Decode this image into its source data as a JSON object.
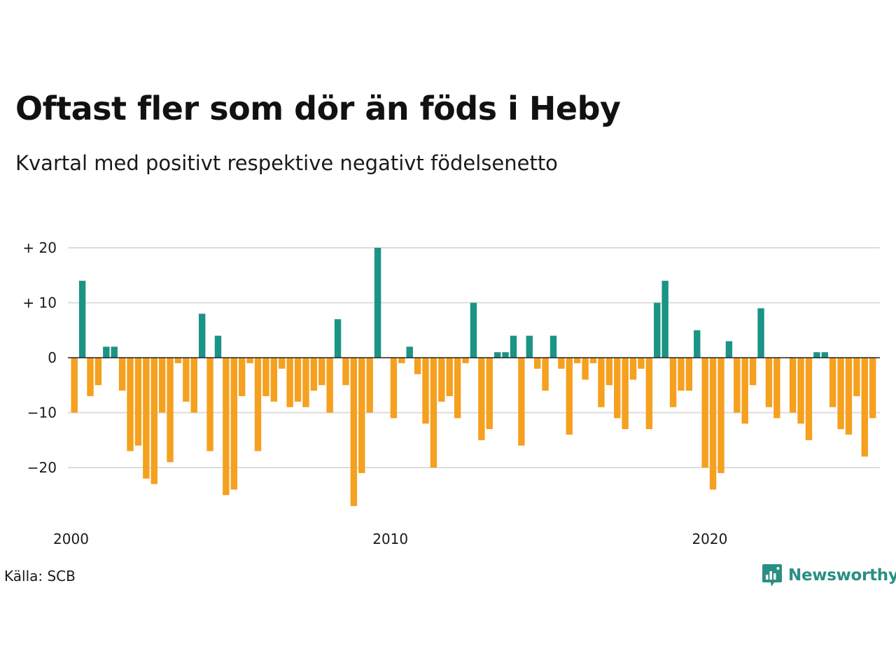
{
  "title": "Oftast fler som dör än föds i Heby",
  "subtitle": "Kvartal med positivt respektive negativt födelsenetto",
  "source": "Källa: SCB",
  "brand": {
    "name": "Newsworthy",
    "icon": "newsworthy-logo-icon"
  },
  "colors": {
    "positive": "#1a9484",
    "negative": "#f5a01f",
    "grid": "#dddddd",
    "axis": "#222222",
    "brand": "#2a8f83"
  },
  "chart_data": {
    "type": "bar",
    "title": "Oftast fler som dör än föds i Heby",
    "subtitle": "Kvartal med positivt respektive negativt födelsenetto",
    "xlabel": "",
    "ylabel": "",
    "ylim": [
      -28,
      20
    ],
    "yticks": [
      20,
      10,
      0,
      -10,
      -20
    ],
    "ytick_labels": [
      "+ 20",
      "+ 10",
      "0",
      "−10",
      "−20"
    ],
    "xtick_labels": [
      "2000",
      "2010",
      "2020"
    ],
    "start_year": 2000,
    "grid": true,
    "series": [
      {
        "values": [
          -10,
          14,
          -7,
          -5,
          2,
          2,
          -6,
          -17,
          -16,
          -22,
          -23,
          -10,
          -19,
          -1,
          -8,
          -10,
          8,
          -17,
          4,
          -25,
          -24,
          -7,
          -1,
          -17,
          -7,
          -8,
          -2,
          -9,
          -8,
          -9,
          -6,
          -5,
          -10,
          7,
          -5,
          -27,
          -21,
          -10,
          20,
          0,
          -11,
          -1,
          2,
          -3,
          -12,
          -20,
          -8,
          -7,
          -11,
          -1,
          10,
          -15,
          -13,
          1,
          1,
          4,
          -16,
          4,
          -2,
          -6,
          4,
          -2,
          -14,
          -1,
          -4,
          -1,
          -9,
          -5,
          -11,
          -13,
          -4,
          -2,
          -13,
          10,
          14,
          -9,
          -6,
          -6,
          5,
          -20,
          -24,
          -21,
          3,
          -10,
          -12,
          -5,
          9,
          -9,
          -11,
          0,
          -10,
          -12,
          -15,
          1,
          1,
          -9,
          -13,
          -14,
          -7,
          -18,
          -11
        ]
      }
    ]
  }
}
